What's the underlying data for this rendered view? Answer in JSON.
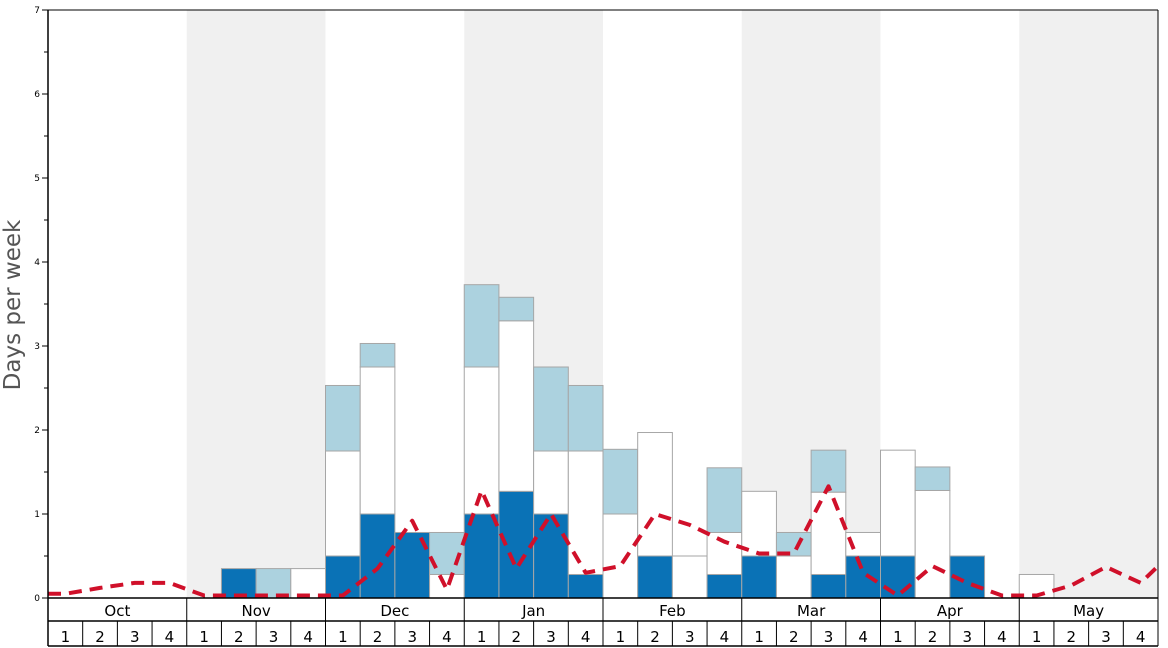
{
  "chart_data": {
    "type": "bar",
    "stacked": true,
    "ylabel": "Days per week",
    "ylim": [
      0,
      7
    ],
    "yticks": [
      "0",
      "1",
      "2",
      "3",
      "4",
      "5",
      "6",
      "7"
    ],
    "months": [
      "Oct",
      "Nov",
      "Dec",
      "Jan",
      "Feb",
      "Mar",
      "Apr",
      "May"
    ],
    "weeks": [
      "1",
      "2",
      "3",
      "4"
    ],
    "categories": [
      "Oct 1",
      "Oct 2",
      "Oct 3",
      "Oct 4",
      "Nov 1",
      "Nov 2",
      "Nov 3",
      "Nov 4",
      "Dec 1",
      "Dec 2",
      "Dec 3",
      "Dec 4",
      "Jan 1",
      "Jan 2",
      "Jan 3",
      "Jan 4",
      "Feb 1",
      "Feb 2",
      "Feb 3",
      "Feb 4",
      "Mar 1",
      "Mar 2",
      "Mar 3",
      "Mar 4",
      "Apr 1",
      "Apr 2",
      "Apr 3",
      "Apr 4",
      "May 1",
      "May 2",
      "May 3",
      "May 4"
    ],
    "series": [
      {
        "color": "#0a72b6",
        "values": [
          0,
          0,
          0,
          0,
          0,
          0.35,
          0,
          0,
          0.5,
          1,
          0.78,
          0,
          1,
          1.27,
          1,
          0.28,
          0,
          0.5,
          0,
          0.28,
          0.5,
          0,
          0.28,
          0.5,
          0.5,
          0,
          0.5,
          0,
          0,
          0,
          0,
          0
        ]
      },
      {
        "color": "#ffffff",
        "values": [
          0,
          0,
          0,
          0,
          0,
          0,
          0,
          0.35,
          1.25,
          1.75,
          0,
          0.28,
          1.75,
          2.03,
          0.75,
          1.47,
          1,
          1.47,
          0.5,
          0.5,
          0.77,
          0.5,
          0.98,
          0.28,
          1.26,
          1.28,
          0,
          0,
          0.28,
          0,
          0,
          0
        ]
      },
      {
        "color": "#acd2df",
        "values": [
          0,
          0,
          0,
          0,
          0,
          0,
          0.35,
          0,
          0.78,
          0.28,
          0,
          0.5,
          0.98,
          0.28,
          1,
          0.78,
          0.77,
          0,
          0,
          0.77,
          0,
          0.28,
          0.5,
          0,
          0,
          0.28,
          0,
          0,
          0,
          0,
          0,
          0
        ]
      }
    ],
    "line": {
      "color": "#d0102a",
      "style": "dashed",
      "values": [
        0.05,
        0.12,
        0.18,
        0.18,
        0.03,
        0.03,
        0.03,
        0.03,
        0.03,
        0.35,
        0.92,
        0.1,
        1.28,
        0.35,
        1.0,
        0.3,
        0.38,
        1.0,
        0.87,
        0.67,
        0.53,
        0.53,
        1.33,
        0.3,
        0.03,
        0.38,
        0.18,
        0.03,
        0.03,
        0.15,
        0.37,
        0.18
      ]
    },
    "line_end": 0.38,
    "shaded_months": [
      "Nov",
      "Jan",
      "Mar",
      "May"
    ],
    "grid": false
  }
}
